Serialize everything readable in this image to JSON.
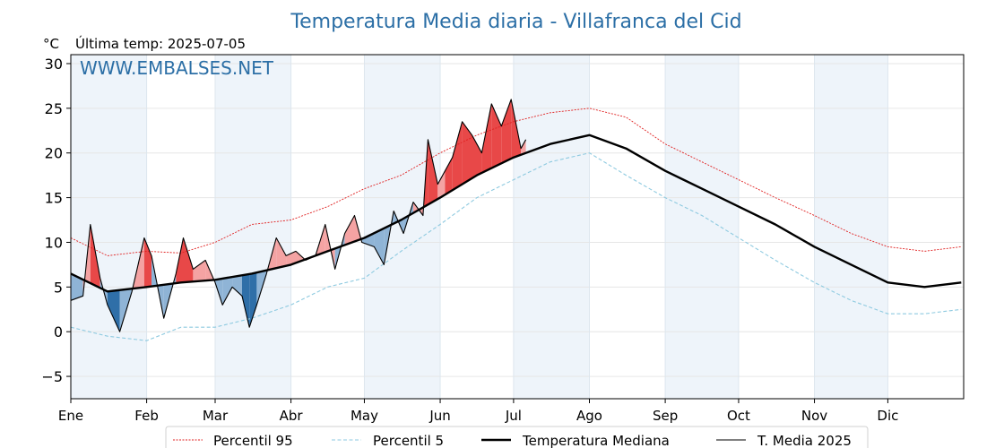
{
  "chart_data": {
    "type": "line",
    "title": "Temperatura Media diaria - Villafranca del Cid",
    "unit": "°C",
    "last_temp_label": "Última temp: 2025-07-05",
    "watermark": "WWW.EMBALSES.NET",
    "ylim": [
      -7.5,
      31
    ],
    "yticks": [
      -5,
      0,
      5,
      10,
      15,
      20,
      25,
      30
    ],
    "months": [
      "Ene",
      "Feb",
      "Mar",
      "Abr",
      "May",
      "Jun",
      "Jul",
      "Ago",
      "Sep",
      "Oct",
      "Nov",
      "Dic"
    ],
    "month_start_day": [
      0,
      31,
      59,
      90,
      120,
      151,
      181,
      212,
      243,
      273,
      304,
      334
    ],
    "days_in_year": 365,
    "grid": true,
    "legend_position": "bottom",
    "colors": {
      "p95": "#e02020",
      "p5": "#8ecae0",
      "median": "#000000",
      "current": "#000000",
      "above": "#f4a3a3",
      "above_strong": "#e84848",
      "below": "#8fb4d6",
      "below_strong": "#2f6fa8",
      "band": "#eef4fa"
    },
    "series": [
      {
        "name": "Percentil 95",
        "style": "dotted-red",
        "x": [
          0,
          15,
          31,
          45,
          59,
          74,
          90,
          105,
          120,
          135,
          151,
          166,
          181,
          196,
          212,
          227,
          243,
          258,
          273,
          288,
          304,
          319,
          334,
          349,
          364
        ],
        "values": [
          10.5,
          8.5,
          9.0,
          8.8,
          10.0,
          12.0,
          12.5,
          14.0,
          16.0,
          17.5,
          20.0,
          22.0,
          23.5,
          24.5,
          25.0,
          24.0,
          21.0,
          19.0,
          17.0,
          15.0,
          13.0,
          11.0,
          9.5,
          9.0,
          9.5
        ]
      },
      {
        "name": "Percentil 5",
        "style": "dashed-lightblue",
        "x": [
          0,
          15,
          31,
          45,
          59,
          74,
          90,
          105,
          120,
          135,
          151,
          166,
          181,
          196,
          212,
          227,
          243,
          258,
          273,
          288,
          304,
          319,
          334,
          349,
          364
        ],
        "values": [
          0.5,
          -0.5,
          -1.0,
          0.5,
          0.5,
          1.5,
          3.0,
          5.0,
          6.0,
          9.0,
          12.0,
          15.0,
          17.0,
          19.0,
          20.0,
          17.5,
          15.0,
          13.0,
          10.5,
          8.0,
          5.5,
          3.5,
          2.0,
          2.0,
          2.5
        ]
      },
      {
        "name": "Temperatura Mediana",
        "style": "thick-black",
        "x": [
          0,
          15,
          31,
          45,
          59,
          74,
          90,
          105,
          120,
          135,
          151,
          166,
          181,
          196,
          212,
          227,
          243,
          258,
          273,
          288,
          304,
          319,
          334,
          349,
          364
        ],
        "values": [
          6.5,
          4.5,
          5.0,
          5.5,
          5.8,
          6.5,
          7.5,
          9.0,
          10.5,
          12.5,
          15.0,
          17.5,
          19.5,
          21.0,
          22.0,
          20.5,
          18.0,
          16.0,
          14.0,
          12.0,
          9.5,
          7.5,
          5.5,
          5.0,
          5.5
        ]
      },
      {
        "name": "T. Media 2025",
        "style": "thin-black",
        "x": [
          0,
          5,
          8,
          12,
          15,
          20,
          25,
          30,
          33,
          38,
          43,
          46,
          50,
          55,
          59,
          62,
          66,
          70,
          73,
          76,
          80,
          84,
          88,
          92,
          96,
          100,
          104,
          108,
          112,
          116,
          119,
          124,
          128,
          132,
          136,
          140,
          144,
          146,
          150,
          153,
          156,
          160,
          164,
          168,
          172,
          176,
          180,
          184,
          186
        ],
        "values": [
          3.5,
          4.0,
          12.0,
          6.0,
          3.0,
          0.0,
          4.5,
          10.5,
          8.5,
          1.5,
          6.5,
          10.5,
          7.0,
          8.0,
          5.5,
          3.0,
          5.0,
          4.0,
          0.5,
          3.0,
          6.5,
          10.5,
          8.5,
          9.0,
          8.0,
          8.5,
          12.0,
          7.0,
          11.0,
          13.0,
          10.0,
          9.5,
          7.5,
          13.5,
          11.0,
          14.5,
          13.0,
          21.5,
          16.5,
          18.0,
          19.5,
          23.5,
          22.0,
          20.0,
          25.5,
          23.0,
          26.0,
          20.5,
          21.5
        ]
      }
    ],
    "legend": [
      "Percentil 95",
      "Percentil 5",
      "Temperatura Mediana",
      "T. Media 2025"
    ]
  }
}
